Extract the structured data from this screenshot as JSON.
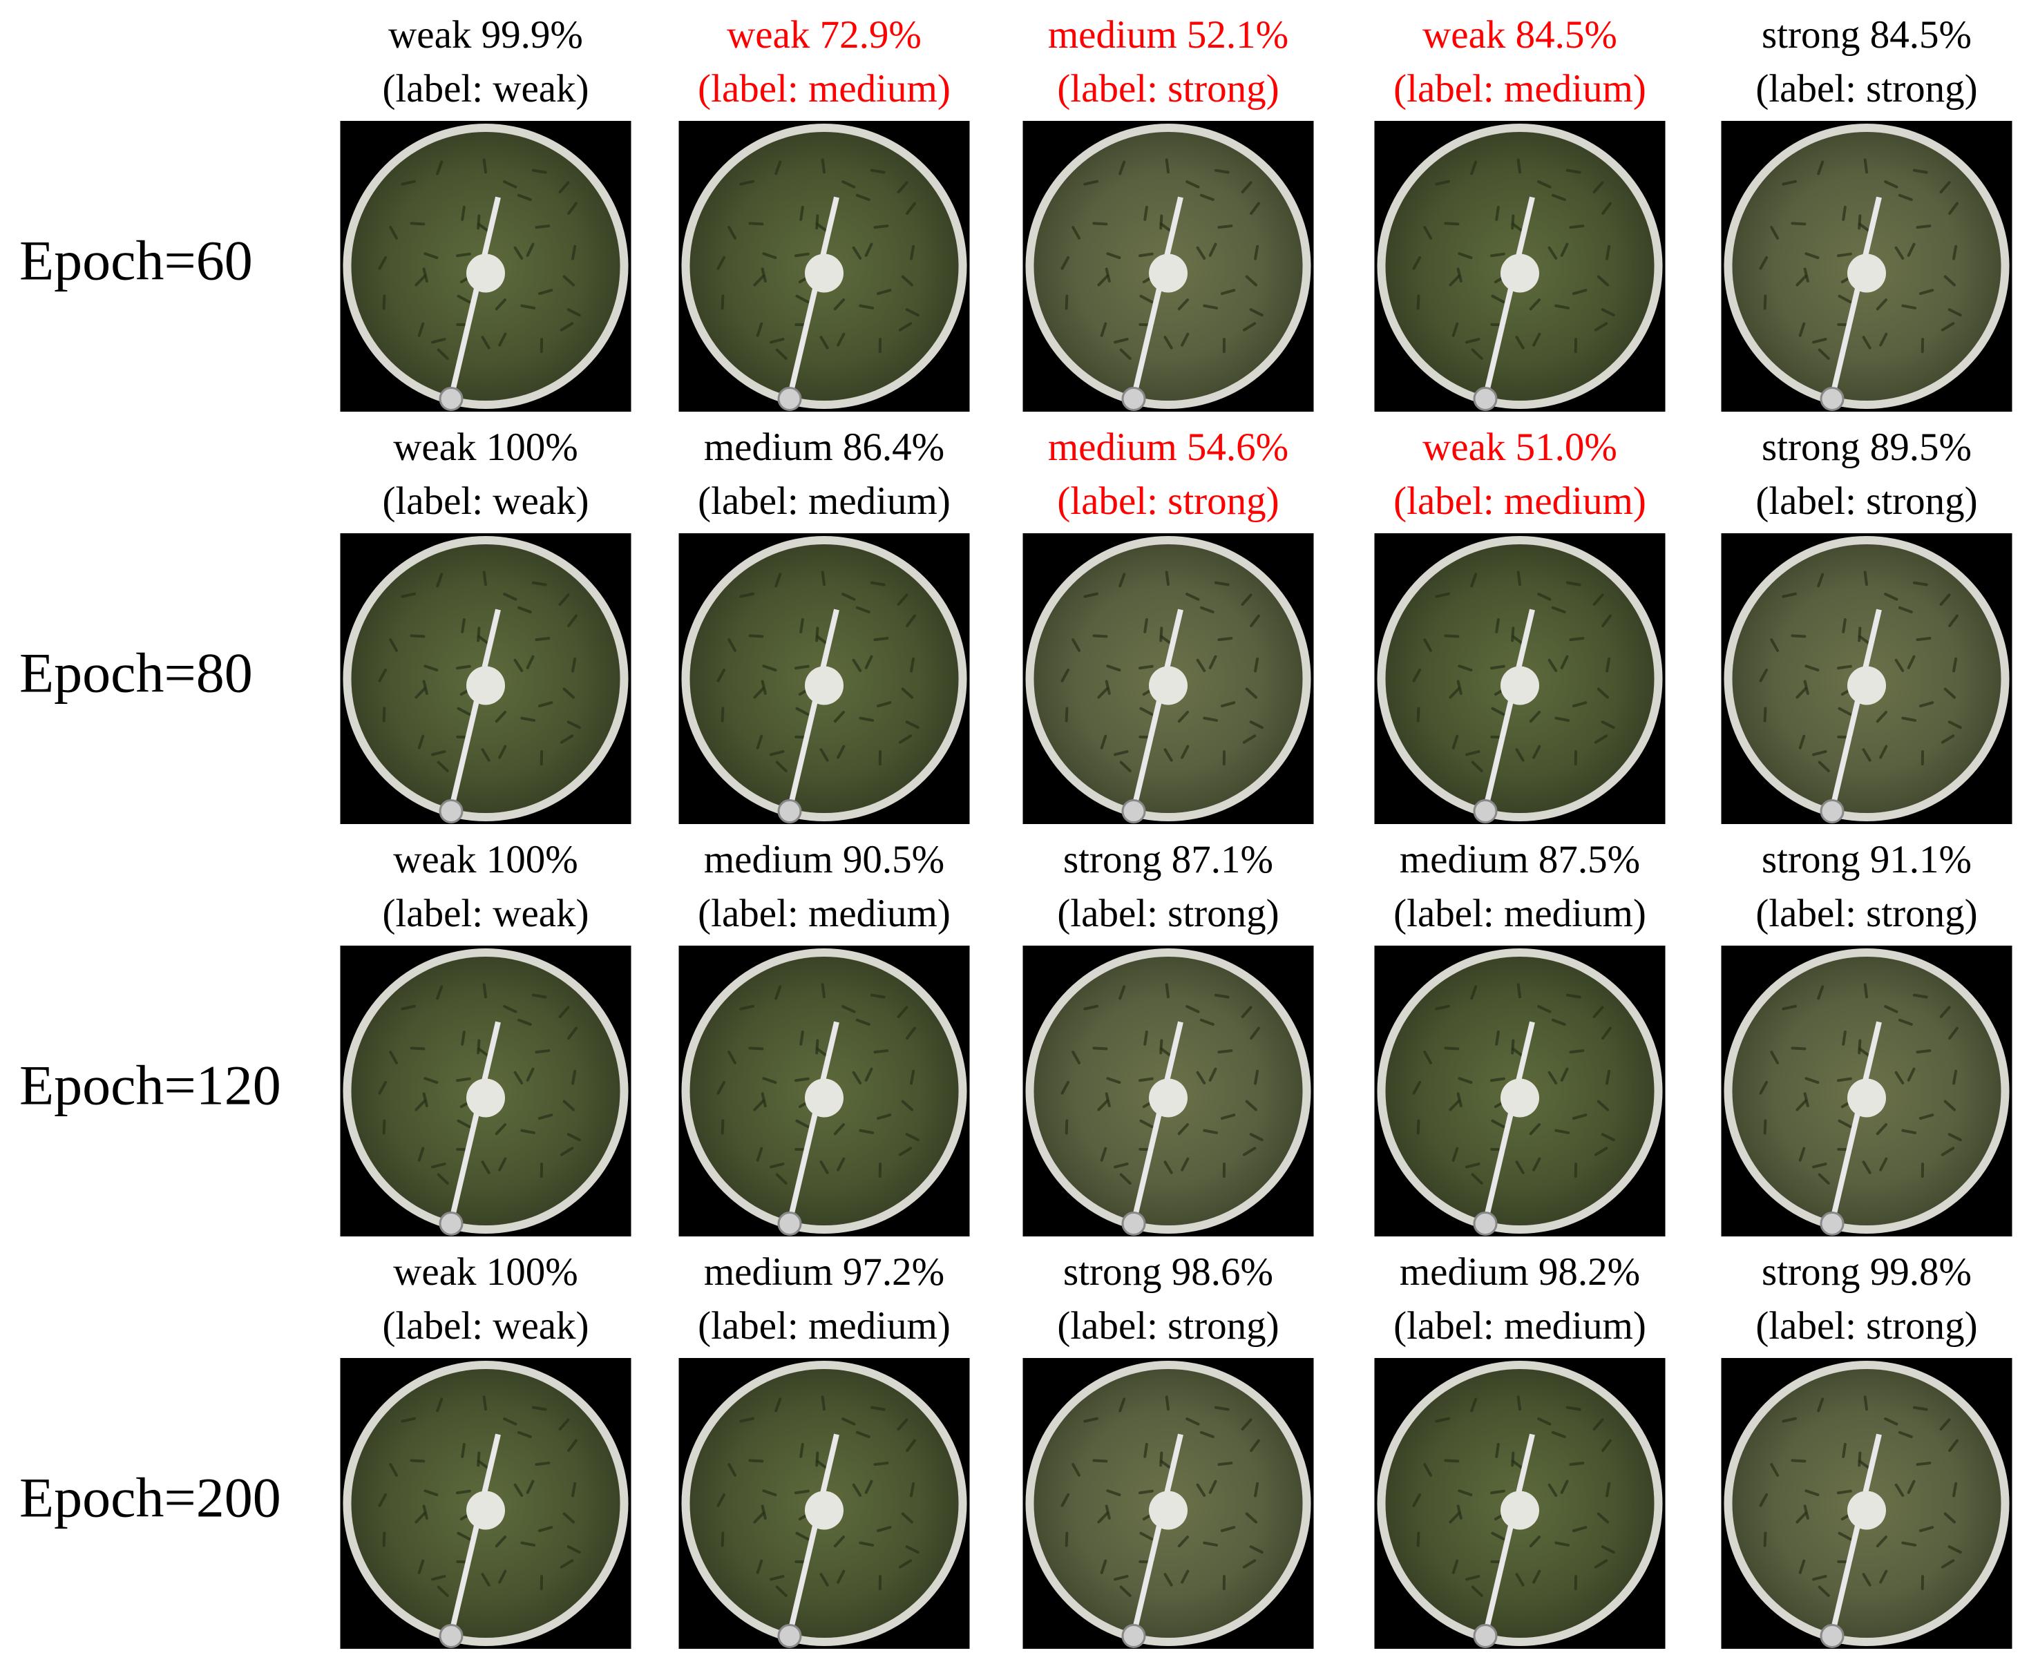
{
  "rows": [
    {
      "label": "Epoch=60",
      "cells": [
        {
          "prediction": "weak 99.9%",
          "label": "(label: weak)",
          "misclassified": false
        },
        {
          "prediction": "weak 72.9%",
          "label": "(label: medium)",
          "misclassified": true
        },
        {
          "prediction": "medium 52.1%",
          "label": "(label: strong)",
          "misclassified": true
        },
        {
          "prediction": "weak 84.5%",
          "label": "(label: medium)",
          "misclassified": true
        },
        {
          "prediction": "strong 84.5%",
          "label": "(label: strong)",
          "misclassified": false
        }
      ]
    },
    {
      "label": "Epoch=80",
      "cells": [
        {
          "prediction": "weak 100%",
          "label": "(label: weak)",
          "misclassified": false
        },
        {
          "prediction": "medium 86.4%",
          "label": "(label: medium)",
          "misclassified": false
        },
        {
          "prediction": "medium 54.6%",
          "label": "(label: strong)",
          "misclassified": true
        },
        {
          "prediction": "weak 51.0%",
          "label": "(label: medium)",
          "misclassified": true
        },
        {
          "prediction": "strong 89.5%",
          "label": "(label: strong)",
          "misclassified": false
        }
      ]
    },
    {
      "label": "Epoch=120",
      "cells": [
        {
          "prediction": "weak 100%",
          "label": "(label: weak)",
          "misclassified": false
        },
        {
          "prediction": "medium 90.5%",
          "label": "(label: medium)",
          "misclassified": false
        },
        {
          "prediction": "strong 87.1%",
          "label": "(label: strong)",
          "misclassified": false
        },
        {
          "prediction": "medium 87.5%",
          "label": "(label: medium)",
          "misclassified": false
        },
        {
          "prediction": "strong 91.1%",
          "label": "(label: strong)",
          "misclassified": false
        }
      ]
    },
    {
      "label": "Epoch=200",
      "cells": [
        {
          "prediction": "weak 100%",
          "label": "(label: weak)",
          "misclassified": false
        },
        {
          "prediction": "medium 97.2%",
          "label": "(label: medium)",
          "misclassified": false
        },
        {
          "prediction": "strong 98.6%",
          "label": "(label: strong)",
          "misclassified": false
        },
        {
          "prediction": "medium 98.2%",
          "label": "(label: medium)",
          "misclassified": false
        },
        {
          "prediction": "strong 99.8%",
          "label": "(label: strong)",
          "misclassified": false
        }
      ]
    }
  ]
}
